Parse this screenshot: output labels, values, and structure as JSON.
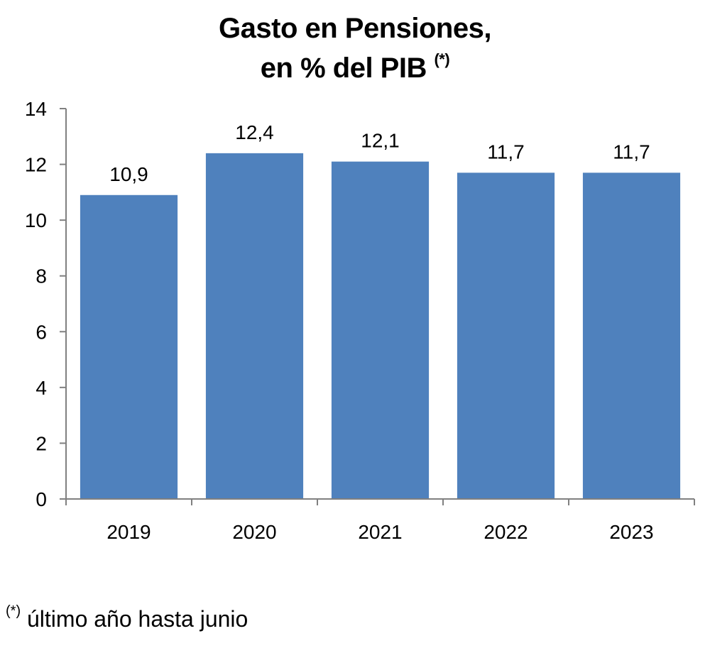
{
  "chart_data": {
    "type": "bar",
    "title_line1": "Gasto en Pensiones,",
    "title_line2": "en % del PIB",
    "title_marker": "(*)",
    "categories": [
      "2019",
      "2020",
      "2021",
      "2022",
      "2023"
    ],
    "values": [
      10.9,
      12.4,
      12.1,
      11.7,
      11.7
    ],
    "value_labels": [
      "10,9",
      "12,4",
      "12,1",
      "11,7",
      "11,7"
    ],
    "yticks": [
      "0",
      "2",
      "4",
      "6",
      "8",
      "10",
      "12",
      "14"
    ],
    "ylim": [
      0,
      14
    ],
    "xlabel": "",
    "ylabel": "",
    "grid": false,
    "legend": "none",
    "bar_color": "#4f81bd"
  },
  "footnote": {
    "marker": "(*)",
    "text": " último año hasta junio"
  }
}
